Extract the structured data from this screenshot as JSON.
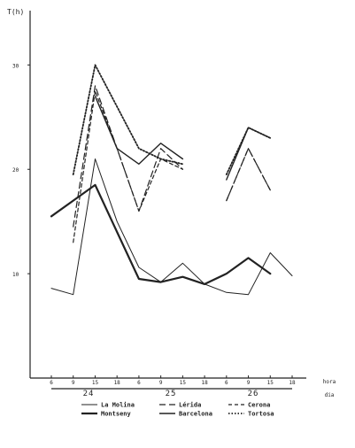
{
  "chart_data": {
    "type": "line",
    "ylabel": "T(h)",
    "x_ticks": [
      "6",
      "9",
      "15",
      "18",
      "6",
      "9",
      "15",
      "18",
      "6",
      "9",
      "15",
      "18"
    ],
    "days": [
      "24",
      "25",
      "26"
    ],
    "x_end_labels": [
      "hora",
      "dia"
    ],
    "y_ticks": [
      "10",
      "20",
      "30"
    ],
    "ylim": [
      0,
      33
    ],
    "series": [
      {
        "name": "La Molina",
        "style": "solid-thin",
        "values": [
          8.6,
          8.0,
          21.0,
          15.0,
          10.6,
          9.2,
          11.0,
          9.0,
          8.2,
          8.0,
          12.0,
          9.8
        ]
      },
      {
        "name": "Lérida",
        "style": "long-dash",
        "values": [
          null,
          14.5,
          28.0,
          22.0,
          16.0,
          22.0,
          20.0,
          null,
          17.0,
          22.0,
          18.0,
          null
        ]
      },
      {
        "name": "Cerona",
        "style": "dashed",
        "values": [
          null,
          13.0,
          27.5,
          22.0,
          16.0,
          21.0,
          20.0,
          null,
          17.0,
          22.0,
          18.0,
          null
        ]
      },
      {
        "name": "Montseny",
        "style": "solid-thick",
        "values": [
          15.5,
          17.0,
          18.5,
          14.0,
          9.5,
          9.2,
          9.7,
          9.0,
          10.0,
          11.5,
          10.0,
          null
        ]
      },
      {
        "name": "Barcelona",
        "style": "solid-bold-thin",
        "values": [
          null,
          null,
          27.0,
          22.0,
          20.5,
          22.5,
          21.0,
          null,
          19.0,
          24.0,
          23.0,
          null
        ]
      },
      {
        "name": "Tortosa",
        "style": "dotted",
        "values": [
          null,
          19.5,
          30.0,
          26.0,
          22.0,
          21.0,
          20.5,
          null,
          19.5,
          24.0,
          23.0,
          null
        ]
      }
    ],
    "legend": {
      "placement": "bottom-center"
    }
  }
}
